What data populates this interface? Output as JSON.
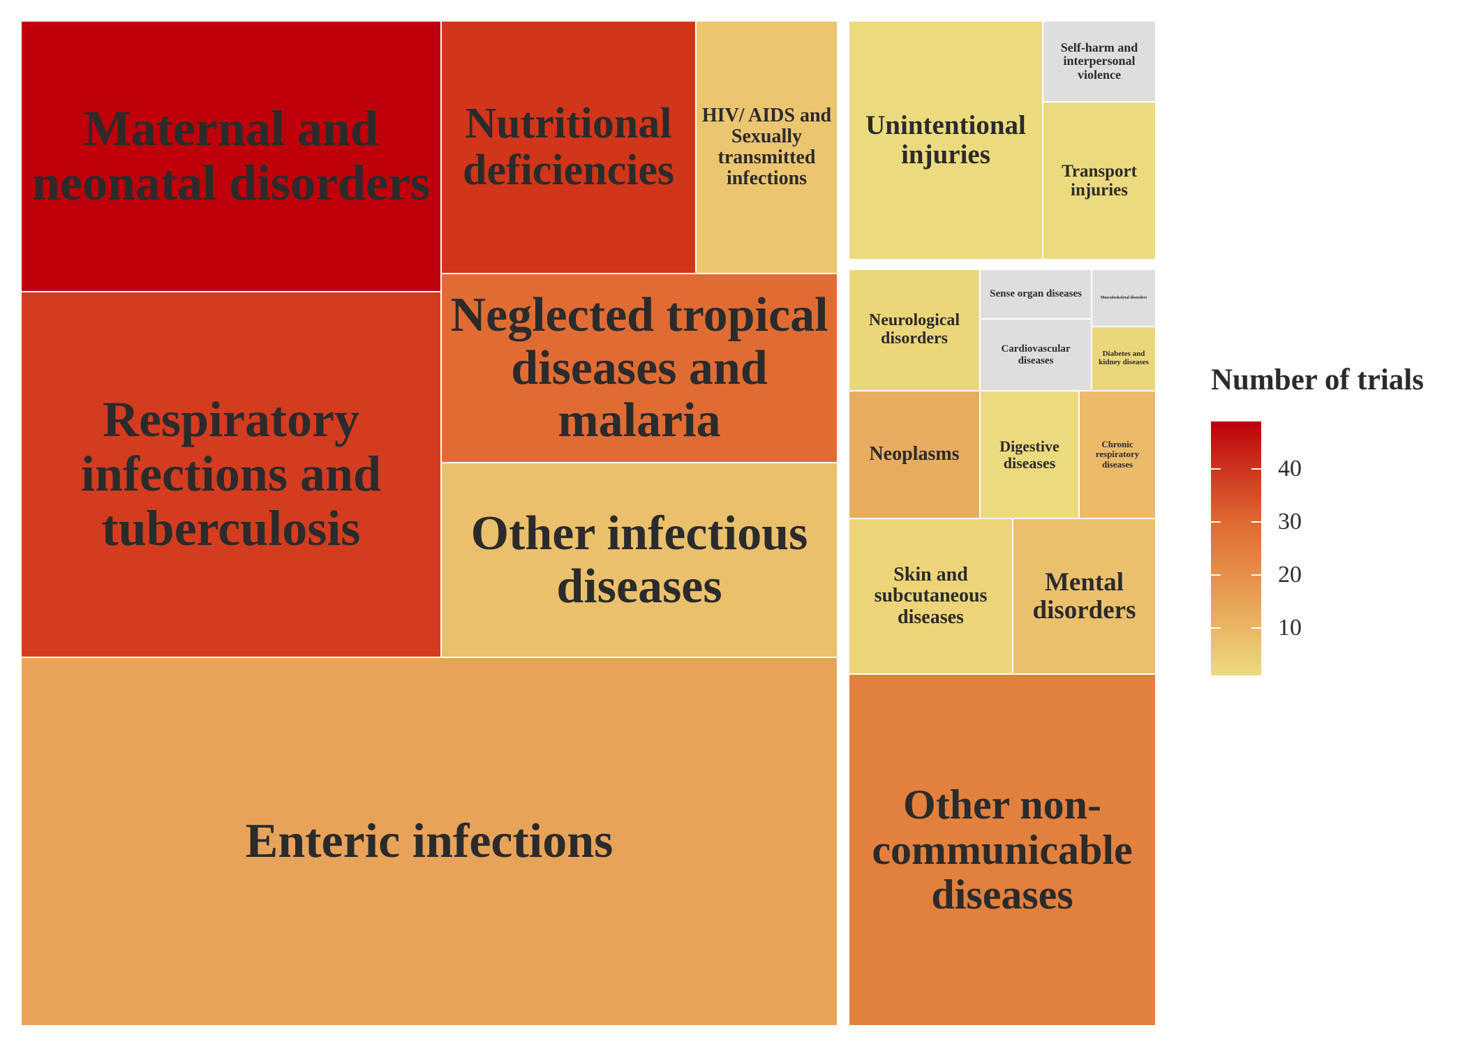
{
  "chart_data": {
    "type": "treemap",
    "legend": {
      "title": "Number of trials",
      "min": 0,
      "max": 50,
      "ticks": [
        10,
        20,
        30,
        40
      ],
      "palette": [
        "#ecda7e",
        "#e8a154",
        "#e06a32",
        "#cf3720",
        "#bd0009"
      ],
      "missing_color": "#dedede"
    },
    "groups": [
      {
        "label": "",
        "children": [
          {
            "label": "Maternal and neonatal disorders",
            "value": 50,
            "color": "#bd0009"
          },
          {
            "label": "Respiratory infections and tuberculosis",
            "value": 37,
            "color": "#d43c20"
          },
          {
            "label": "Enteric infections",
            "value": 19,
            "color": "#e8a35a"
          },
          {
            "label": "Nutritional deficiencies",
            "value": 38,
            "color": "#d1351a"
          },
          {
            "label": "HIV/ AIDS and Sexually transmitted infections",
            "value": 9,
            "color": "#ecc570"
          },
          {
            "label": "Neglected tropical diseases and malaria",
            "value": 27,
            "color": "#e06c34"
          },
          {
            "label": "Other infectious diseases",
            "value": 11,
            "color": "#ebc06c"
          }
        ]
      },
      {
        "label": "",
        "children": [
          {
            "label": "Unintentional injuries",
            "value": 3,
            "color": "#ecda7e"
          },
          {
            "label": "Self-harm and interpersonal violence",
            "value": null,
            "color": "#dedede"
          },
          {
            "label": "Transport injuries",
            "value": 3,
            "color": "#ecda7e"
          }
        ]
      },
      {
        "label": "",
        "children": [
          {
            "label": "Neurological disorders",
            "value": 4,
            "color": "#ecd67a"
          },
          {
            "label": "Sense organ diseases",
            "value": null,
            "color": "#dedede"
          },
          {
            "label": "Musculoskeletal disorders",
            "value": null,
            "color": "#dedede"
          },
          {
            "label": "Cardiovascular diseases",
            "value": null,
            "color": "#dedede"
          },
          {
            "label": "Diabetes and kidney diseases",
            "value": 4,
            "color": "#ecd67a"
          },
          {
            "label": "Neoplasms",
            "value": 14,
            "color": "#e8ac60"
          },
          {
            "label": "Digestive diseases",
            "value": 3,
            "color": "#ecda7e"
          },
          {
            "label": "Chronic respiratory diseases",
            "value": 11,
            "color": "#ebbb6a"
          },
          {
            "label": "Skin and subcutaneous diseases",
            "value": 5,
            "color": "#edd479"
          },
          {
            "label": "Mental disorders",
            "value": 10,
            "color": "#ebc06c"
          },
          {
            "label": "Other non-communicable diseases",
            "value": 24,
            "color": "#e2803e"
          }
        ]
      }
    ]
  }
}
